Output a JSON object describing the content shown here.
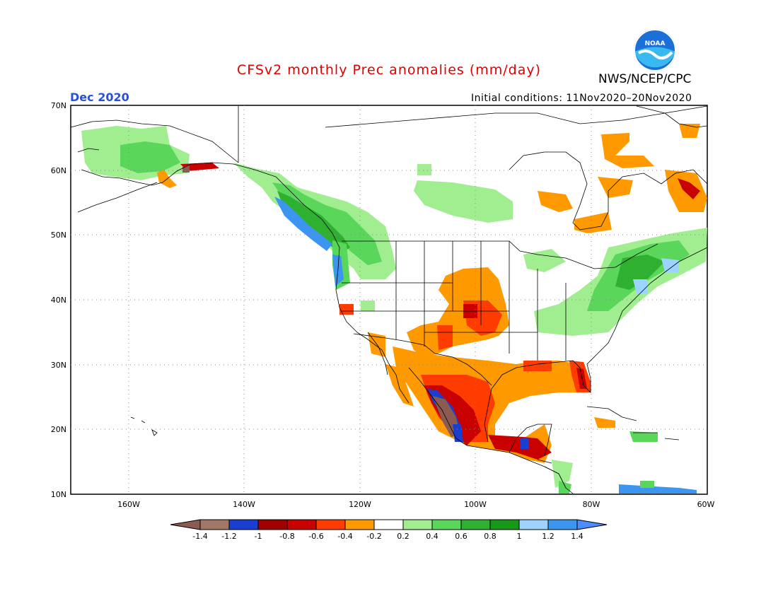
{
  "header": {
    "title": "CFSv2 monthly Prec anomalies (mm/day)",
    "organization": "NWS/NCEP/CPC",
    "logo_text": "NOAA",
    "month": "Dec 2020",
    "initial_conditions": "Initial conditions: 11Nov2020–20Nov2020"
  },
  "axes": {
    "lat_labels": [
      "70N",
      "60N",
      "50N",
      "40N",
      "30N",
      "20N",
      "10N"
    ],
    "lon_labels": [
      "160W",
      "140W",
      "120W",
      "100W",
      "80W",
      "60W"
    ]
  },
  "colorbar": {
    "labels": [
      "-1.4",
      "-1.2",
      "-1",
      "-0.8",
      "-0.6",
      "-0.4",
      "-0.2",
      "0.2",
      "0.4",
      "0.6",
      "0.8",
      "1",
      "1.2",
      "1.4"
    ],
    "colors": [
      "#8b5a50",
      "#a07868",
      "#1a3fd0",
      "#a00000",
      "#c80000",
      "#ff3c00",
      "#ff9900",
      "#ffffff",
      "#a0ee90",
      "#5ad65a",
      "#30b030",
      "#189818",
      "#9cd4ff",
      "#3c96f0",
      "#4c8cff"
    ]
  },
  "chart_data": {
    "type": "heatmap",
    "title": "CFSv2 monthly Prec anomalies (mm/day)",
    "units": "mm/day",
    "period": "Dec 2020",
    "lon_range": [
      -170,
      -60
    ],
    "lat_range": [
      10,
      70
    ],
    "color_levels": [
      -1.4,
      -1.2,
      -1,
      -0.8,
      -0.6,
      -0.4,
      -0.2,
      0.2,
      0.4,
      0.6,
      0.8,
      1,
      1.2,
      1.4
    ]
  }
}
